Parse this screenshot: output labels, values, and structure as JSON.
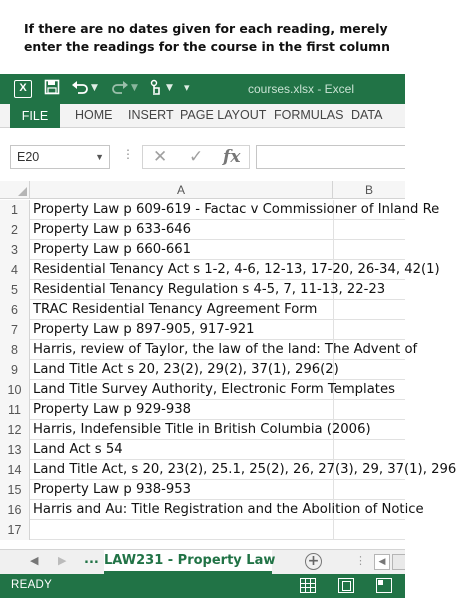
{
  "instruction": "If there are no dates given for each reading, merely enter the readings for the course in the first column",
  "window": {
    "title": "courses.xlsx - Excel",
    "logo_letter": "X"
  },
  "quick_access": {
    "save_icon": "save-icon",
    "undo_icon": "undo-icon",
    "redo_icon": "redo-icon",
    "touch_icon": "touch-mode-icon",
    "customize_icon": "customize-icon"
  },
  "ribbon": {
    "tabs": [
      "FILE",
      "HOME",
      "INSERT",
      "PAGE LAYOUT",
      "FORMULAS",
      "DATA"
    ],
    "active": "FILE"
  },
  "formula_bar": {
    "name_box": "E20",
    "name_box_caret": "▼",
    "separator": "⋮",
    "cancel_glyph": "✕",
    "enter_glyph": "✓",
    "fx_glyph": "fx",
    "value": ""
  },
  "sheet": {
    "columns": [
      "A",
      "B"
    ],
    "rows": [
      {
        "num": "1",
        "a": "Property Law p 609-619 - Factac v Commissioner of Inland Re"
      },
      {
        "num": "2",
        "a": "Property Law p 633-646"
      },
      {
        "num": "3",
        "a": "Property Law p 660-661"
      },
      {
        "num": "4",
        "a": "Residential Tenancy Act s 1-2, 4-6, 12-13, 17-20, 26-34, 42(1)"
      },
      {
        "num": "5",
        "a": "Residential Tenancy Regulation s 4-5, 7, 11-13, 22-23"
      },
      {
        "num": "6",
        "a": "TRAC Residential Tenancy Agreement Form"
      },
      {
        "num": "7",
        "a": "Property Law p 897-905, 917-921"
      },
      {
        "num": "8",
        "a": "Harris, review of Taylor, the law of the land: The Advent of"
      },
      {
        "num": "9",
        "a": "Land Title Act s 20, 23(2), 29(2), 37(1), 296(2)"
      },
      {
        "num": "10",
        "a": "Land Title Survey Authority, Electronic Form Templates"
      },
      {
        "num": "11",
        "a": "Property Law p 929-938"
      },
      {
        "num": "12",
        "a": "Harris, Indefensible Title in British Columbia (2006)"
      },
      {
        "num": "13",
        "a": "Land Act s 54"
      },
      {
        "num": "14",
        "a": "Land Title Act, s 20, 23(2), 25.1, 25(2), 26, 27(3), 29, 37(1), 296"
      },
      {
        "num": "15",
        "a": "Property Law p 938-953"
      },
      {
        "num": "16",
        "a": "Harris and Au: Title Registration and the Abolition of Notice"
      },
      {
        "num": "17",
        "a": ""
      }
    ]
  },
  "sheet_tabs": {
    "prev_arrow": "◀",
    "next_arrow": "▶",
    "overflow": "...",
    "active_label": "LAW231 - Property Law",
    "add_glyph": "+",
    "separator": "⋮",
    "scroll_left": "◀"
  },
  "status_bar": {
    "text": "READY",
    "view_icons": [
      "normal-view-icon",
      "page-layout-view-icon",
      "page-break-preview-icon"
    ]
  },
  "colors": {
    "excel_green": "#217346",
    "ribbon_bg": "#f3f3f3",
    "header_bg": "#f6f6f6"
  }
}
